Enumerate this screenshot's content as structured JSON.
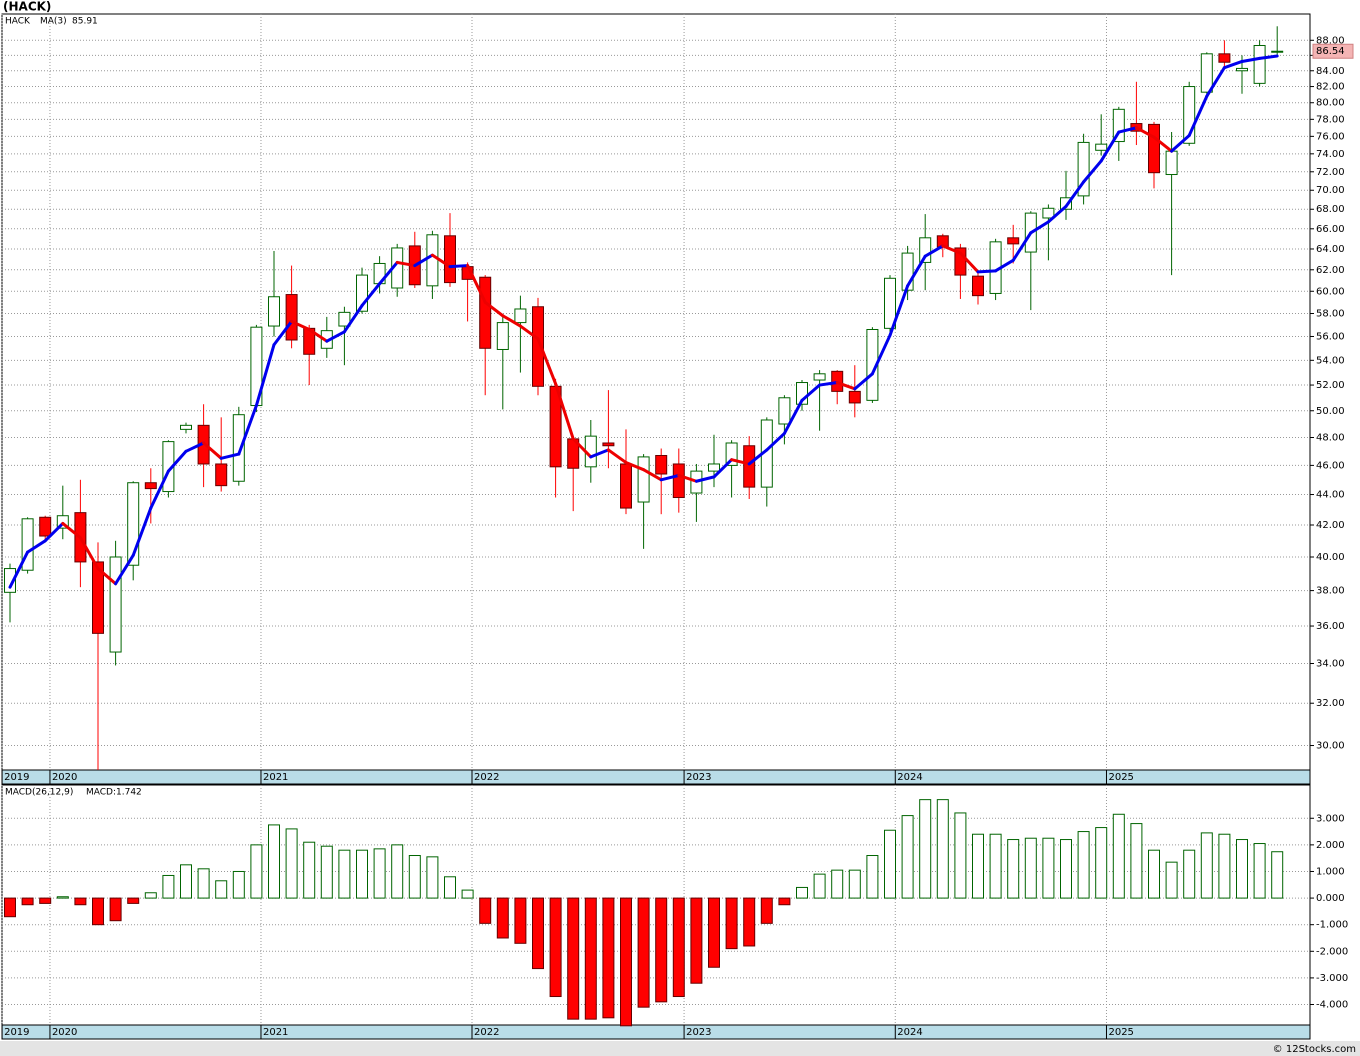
{
  "header": {
    "title": "(HACK)"
  },
  "chart_data": [
    {
      "type": "candlestick",
      "legend": {
        "symbol": "HACK",
        "symbol_color": "#008000",
        "ma_value": "85.91"
      },
      "last_price_label": "86.54",
      "log_scale": true,
      "grid": true,
      "ylim": [
        28.9,
        91.6
      ],
      "yticks": [
        {
          "value": 30,
          "label": "30.00"
        },
        {
          "value": 32,
          "label": "32.00"
        },
        {
          "value": 34,
          "label": "34.00"
        },
        {
          "value": 36,
          "label": "36.00"
        },
        {
          "value": 38,
          "label": "38.00"
        },
        {
          "value": 40,
          "label": "40.00"
        },
        {
          "value": 42,
          "label": "42.00"
        },
        {
          "value": 44,
          "label": "44.00"
        },
        {
          "value": 46,
          "label": "46.00"
        },
        {
          "value": 48,
          "label": "48.00"
        },
        {
          "value": 50,
          "label": "50.00"
        },
        {
          "value": 52,
          "label": "52.00"
        },
        {
          "value": 54,
          "label": "54.00"
        },
        {
          "value": 56,
          "label": "56.00"
        },
        {
          "value": 58,
          "label": "58.00"
        },
        {
          "value": 60,
          "label": "60.00"
        },
        {
          "value": 62,
          "label": "62.00"
        },
        {
          "value": 64,
          "label": "64.00"
        },
        {
          "value": 66,
          "label": "66.00"
        },
        {
          "value": 68,
          "label": "68.00"
        },
        {
          "value": 70,
          "label": "70.00"
        },
        {
          "value": 72,
          "label": "72.00"
        },
        {
          "value": 74,
          "label": "74.00"
        },
        {
          "value": 76,
          "label": "76.00"
        },
        {
          "value": 78,
          "label": "78.00"
        },
        {
          "value": 80,
          "label": "80.00"
        },
        {
          "value": 82,
          "label": "82.00"
        },
        {
          "value": 84,
          "label": "84.00"
        },
        {
          "value": 86,
          "label": "86.00"
        },
        {
          "value": 88,
          "label": "88.00"
        }
      ],
      "xticks": [
        {
          "value": -0.45,
          "label": "2019"
        },
        {
          "value": 2.27,
          "label": "2020"
        },
        {
          "value": 14.26,
          "label": "2021"
        },
        {
          "value": 26.25,
          "label": "2022"
        },
        {
          "value": 38.3,
          "label": "2023"
        },
        {
          "value": 50.3,
          "label": "2024"
        },
        {
          "value": 62.3,
          "label": "2025"
        }
      ],
      "up_color": "#006400",
      "down_color": "#ff0000",
      "open": [
        37.9,
        39.2,
        42.5,
        41.8,
        42.8,
        39.7,
        34.6,
        39.5,
        44.8,
        44.2,
        48.6,
        48.9,
        46.1,
        44.9,
        50.4,
        56.9,
        59.7,
        56.7,
        55,
        56.9,
        58.2,
        60.7,
        60.3,
        64.3,
        60.5,
        65.3,
        62.3,
        61.3,
        54.9,
        57.2,
        58.6,
        51.9,
        47.9,
        45.9,
        47.6,
        46.1,
        43.5,
        46.7,
        46.1,
        44.1,
        45.6,
        46,
        47.4,
        44.5,
        49,
        50.5,
        52.4,
        53.1,
        51.5,
        50.8,
        56.7,
        60.1,
        62.7,
        65.3,
        64.1,
        61.4,
        59.8,
        65.1,
        63.7,
        67.1,
        68,
        69.4,
        74.4,
        75.4,
        77.5,
        77.4,
        71.7,
        75.2,
        81.3,
        86.2,
        84,
        82.4,
        86.5
      ],
      "high": [
        39.6,
        42.5,
        42.6,
        44.6,
        45,
        40.9,
        41,
        44.9,
        45.8,
        47.8,
        49.1,
        50.5,
        49.5,
        50.3,
        57,
        63.8,
        62.4,
        57,
        57.7,
        58.6,
        62.2,
        63.3,
        64.5,
        65.7,
        65.8,
        67.6,
        62.7,
        61.5,
        57.8,
        59.6,
        59.4,
        52.5,
        47.9,
        49.3,
        51.6,
        48.6,
        46.8,
        47.2,
        47.2,
        46.1,
        48.2,
        47.8,
        48.1,
        49.5,
        51.2,
        52.4,
        53.2,
        53.2,
        53.6,
        56.8,
        61.5,
        64.3,
        67.5,
        65.5,
        64.5,
        62,
        65,
        66.4,
        67.8,
        68.5,
        72.1,
        76.3,
        78.6,
        79.5,
        82.6,
        77.7,
        76.5,
        82.6,
        86.4,
        88,
        86,
        88,
        89.9
      ],
      "low": [
        36.2,
        39,
        40.9,
        41.1,
        38.2,
        28.9,
        33.9,
        38.6,
        42.1,
        43.8,
        48.3,
        44.5,
        44.2,
        44.6,
        49.9,
        56,
        55,
        52,
        54.2,
        53.6,
        58,
        59.8,
        59.5,
        60.3,
        59.3,
        60.4,
        57.3,
        51.2,
        50.1,
        53,
        51.2,
        43.8,
        42.9,
        44.8,
        45.8,
        42.7,
        40.5,
        42.7,
        42.8,
        42.2,
        44.5,
        43.8,
        43.7,
        43.2,
        47.5,
        50,
        48.5,
        50.5,
        49.5,
        50.6,
        56,
        59.2,
        60.1,
        63.2,
        59.3,
        58.8,
        59.2,
        62.6,
        58.3,
        62.9,
        66.9,
        68.5,
        73.8,
        73.2,
        75,
        70.2,
        61.5,
        74.9,
        80.4,
        84.3,
        81.1,
        82,
        86.1
      ],
      "close": [
        39.3,
        42.4,
        41.3,
        42.6,
        39.7,
        35.6,
        40,
        44.8,
        44.4,
        47.7,
        48.9,
        46.1,
        44.6,
        49.7,
        56.8,
        59.5,
        55.7,
        54.5,
        56.5,
        58.1,
        61.5,
        62.6,
        64.1,
        60.6,
        65.4,
        60.8,
        61.1,
        55,
        57.2,
        58.4,
        51.9,
        45.9,
        45.8,
        48.1,
        47.4,
        43.1,
        46.6,
        45.4,
        43.8,
        45.6,
        46.1,
        47.6,
        44.5,
        49.3,
        51,
        52.2,
        52.9,
        51.5,
        50.6,
        56.6,
        61.2,
        63.6,
        65.1,
        64.2,
        61.5,
        59.6,
        64.7,
        64.5,
        67.6,
        68.1,
        69.2,
        75.3,
        75.1,
        79.2,
        76.6,
        71.9,
        74.3,
        82,
        86.2,
        85.1,
        84.3,
        87.3,
        86.54
      ],
      "ma": {
        "name": "MA(3)",
        "rising_color": "#0000ee",
        "falling_color": "#ee0000",
        "values": [
          38.2,
          40.3,
          41.0,
          42.1,
          41.2,
          39.3,
          38.4,
          40.1,
          43.1,
          45.6,
          47.0,
          47.6,
          46.5,
          46.8,
          50.4,
          55.3,
          57.3,
          56.6,
          55.6,
          56.4,
          58.7,
          60.7,
          62.7,
          62.4,
          63.4,
          62.3,
          62.4,
          59.0,
          57.8,
          56.9,
          55.8,
          52.1,
          47.9,
          46.6,
          47.1,
          46.2,
          45.7,
          45.0,
          45.3,
          44.9,
          45.2,
          46.4,
          46.1,
          47.1,
          48.3,
          50.8,
          52.0,
          52.2,
          51.7,
          52.9,
          56.1,
          60.5,
          63.3,
          64.3,
          63.6,
          61.8,
          61.9,
          62.9,
          65.6,
          66.7,
          68.3,
          70.9,
          73.2,
          76.5,
          77.0,
          75.9,
          74.3,
          76.1,
          80.8,
          84.4,
          85.2,
          85.6,
          85.91
        ]
      }
    },
    {
      "type": "bar",
      "title": "MACD(26,12,9)",
      "value_label": "MACD:1.742",
      "value_label_color": "#0000ee",
      "grid": true,
      "ylim": [
        -4.77,
        4.25
      ],
      "yticks": [
        {
          "value": 3,
          "label": "3.000"
        },
        {
          "value": 2,
          "label": "2.000"
        },
        {
          "value": 1,
          "label": "1.000"
        },
        {
          "value": 0,
          "label": "0.000"
        },
        {
          "value": -1,
          "label": "-1.000"
        },
        {
          "value": -2,
          "label": "-2.000"
        },
        {
          "value": -3,
          "label": "-3.000"
        },
        {
          "value": -4,
          "label": "-4.000"
        }
      ],
      "xticks": [
        {
          "value": -0.45,
          "label": "2019"
        },
        {
          "value": 2.27,
          "label": "2020"
        },
        {
          "value": 14.26,
          "label": "2021"
        },
        {
          "value": 26.25,
          "label": "2022"
        },
        {
          "value": 38.3,
          "label": "2023"
        },
        {
          "value": 50.3,
          "label": "2024"
        },
        {
          "value": 62.3,
          "label": "2025"
        }
      ],
      "positive_color": "#006400",
      "negative_color": "#ff0000",
      "values": [
        -0.7,
        -0.25,
        -0.2,
        0.05,
        -0.25,
        -1.0,
        -0.85,
        -0.2,
        0.2,
        0.85,
        1.25,
        1.1,
        0.65,
        1.0,
        2.0,
        2.75,
        2.6,
        2.1,
        1.95,
        1.8,
        1.8,
        1.85,
        2.0,
        1.6,
        1.55,
        0.8,
        0.3,
        -0.95,
        -1.5,
        -1.7,
        -2.65,
        -3.7,
        -4.55,
        -4.55,
        -4.5,
        -4.8,
        -4.1,
        -3.9,
        -3.7,
        -3.2,
        -2.6,
        -1.9,
        -1.8,
        -0.95,
        -0.25,
        0.4,
        0.9,
        1.05,
        1.05,
        1.6,
        2.55,
        3.1,
        3.7,
        3.7,
        3.2,
        2.4,
        2.4,
        2.2,
        2.25,
        2.25,
        2.2,
        2.5,
        2.65,
        3.15,
        2.8,
        1.8,
        1.35,
        1.8,
        2.45,
        2.4,
        2.2,
        2.05,
        1.742
      ]
    }
  ],
  "footer": "© 12Stocks.com"
}
